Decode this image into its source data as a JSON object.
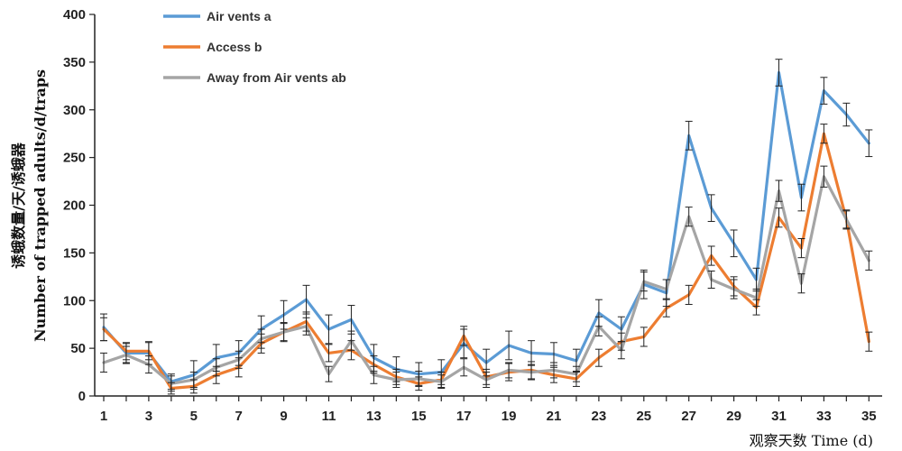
{
  "chart_data": {
    "type": "line",
    "xlabel": "观察天数 Time (d)",
    "ylabel_line1": "诱蛾数量/天/诱蛾器",
    "ylabel_line2": "Number of trapped adults/d/traps",
    "ylim": [
      0,
      400
    ],
    "yticks": [
      0,
      50,
      100,
      150,
      200,
      250,
      300,
      350,
      400
    ],
    "xticks": [
      1,
      3,
      5,
      7,
      9,
      11,
      13,
      15,
      17,
      19,
      21,
      23,
      25,
      27,
      29,
      31,
      33,
      35
    ],
    "x": [
      1,
      2,
      3,
      4,
      5,
      6,
      7,
      8,
      9,
      10,
      11,
      12,
      13,
      14,
      15,
      16,
      17,
      18,
      19,
      20,
      21,
      22,
      23,
      24,
      25,
      26,
      27,
      28,
      29,
      30,
      31,
      32,
      33,
      34,
      35
    ],
    "grid": false,
    "legend_position": "top-left",
    "series": [
      {
        "name": "Air vents a",
        "color": "#5b9bd5",
        "values": [
          72,
          45,
          45,
          15,
          22,
          40,
          45,
          70,
          85,
          101,
          70,
          80,
          40,
          28,
          23,
          25,
          55,
          35,
          53,
          45,
          44,
          37,
          87,
          70,
          117,
          108,
          273,
          197,
          160,
          122,
          339,
          208,
          320,
          295,
          265
        ],
        "errors": [
          14,
          10,
          12,
          8,
          15,
          14,
          13,
          14,
          15,
          15,
          15,
          15,
          14,
          13,
          12,
          13,
          15,
          14,
          15,
          13,
          12,
          12,
          14,
          13,
          15,
          14,
          15,
          14,
          14,
          12,
          14,
          14,
          14,
          12,
          14
        ]
      },
      {
        "name": "Access b",
        "color": "#ed7d31",
        "values": [
          70,
          47,
          47,
          8,
          10,
          22,
          30,
          55,
          67,
          78,
          45,
          48,
          33,
          20,
          13,
          17,
          63,
          20,
          25,
          27,
          22,
          18,
          40,
          57,
          62,
          92,
          106,
          147,
          115,
          93,
          187,
          155,
          275,
          185,
          57
        ],
        "errors": [
          12,
          9,
          9,
          6,
          7,
          9,
          10,
          10,
          10,
          10,
          9,
          10,
          9,
          8,
          7,
          8,
          10,
          8,
          9,
          9,
          8,
          8,
          9,
          9,
          10,
          9,
          10,
          10,
          10,
          8,
          10,
          10,
          10,
          10,
          10
        ]
      },
      {
        "name": "Away from Air vents ab",
        "color": "#a5a5a5",
        "values": [
          35,
          43,
          33,
          13,
          17,
          30,
          38,
          60,
          67,
          73,
          23,
          58,
          22,
          17,
          18,
          15,
          30,
          17,
          27,
          25,
          27,
          23,
          73,
          48,
          120,
          112,
          188,
          122,
          112,
          103,
          215,
          118,
          230,
          185,
          142
        ],
        "errors": [
          10,
          9,
          9,
          8,
          8,
          9,
          9,
          10,
          9,
          9,
          8,
          10,
          9,
          8,
          8,
          7,
          9,
          8,
          8,
          8,
          8,
          8,
          10,
          9,
          10,
          10,
          10,
          9,
          10,
          9,
          11,
          10,
          11,
          9,
          10
        ]
      }
    ]
  }
}
